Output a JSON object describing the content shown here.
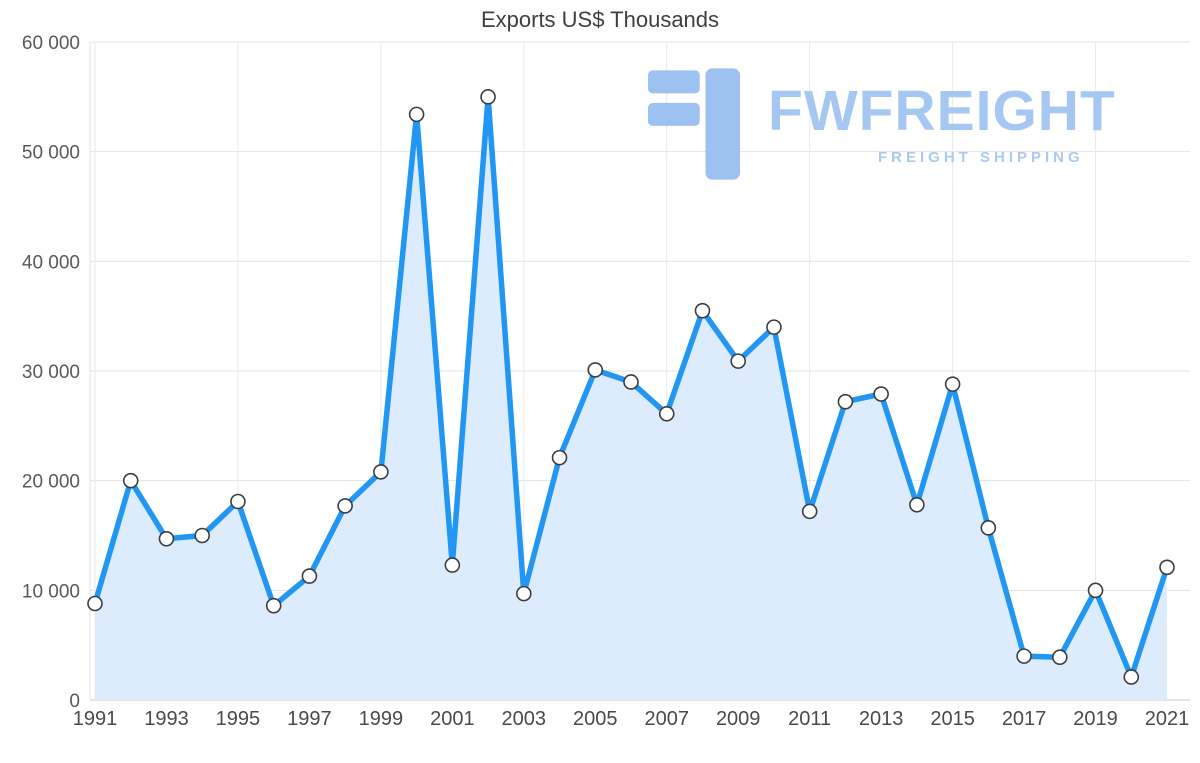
{
  "chart": {
    "title": "Exports US$ Thousands"
  },
  "watermark": {
    "name": "FWFREIGHT",
    "tagline": "FREIGHT SHIPPING",
    "color": "#a5c8f3"
  },
  "chart_data": {
    "type": "area",
    "title": "Exports US$ Thousands",
    "xlabel": "",
    "ylabel": "",
    "x": [
      1991,
      1992,
      1993,
      1994,
      1995,
      1996,
      1997,
      1998,
      1999,
      2000,
      2001,
      2002,
      2003,
      2004,
      2005,
      2006,
      2007,
      2008,
      2009,
      2010,
      2011,
      2012,
      2013,
      2014,
      2015,
      2016,
      2017,
      2018,
      2019,
      2020,
      2021
    ],
    "values": [
      8800,
      20000,
      14700,
      15000,
      18100,
      8600,
      11300,
      17700,
      20800,
      53400,
      12300,
      55000,
      9700,
      22100,
      30100,
      29000,
      26100,
      35500,
      30900,
      34000,
      17200,
      27200,
      27900,
      17800,
      28800,
      15700,
      4000,
      3900,
      10000,
      2100,
      12100
    ],
    "ylim": [
      0,
      60000
    ],
    "y_ticks": [
      0,
      10000,
      20000,
      30000,
      40000,
      50000,
      60000
    ],
    "y_tick_labels": [
      "0",
      "10 000",
      "20 000",
      "30 000",
      "40 000",
      "50 000",
      "60 000"
    ],
    "x_tick_years": [
      1991,
      1993,
      1995,
      1997,
      1999,
      2001,
      2003,
      2005,
      2007,
      2009,
      2011,
      2013,
      2015,
      2017,
      2019,
      2021
    ],
    "grid": true,
    "legend": false,
    "line_color": "#2196f3",
    "area_color": "#dcecfc",
    "marker_fill": "#ffffff",
    "marker_stroke": "#3d3d3d",
    "gridline_color": "#e3e3e3",
    "axis_label_color": "#4a4a4a"
  }
}
